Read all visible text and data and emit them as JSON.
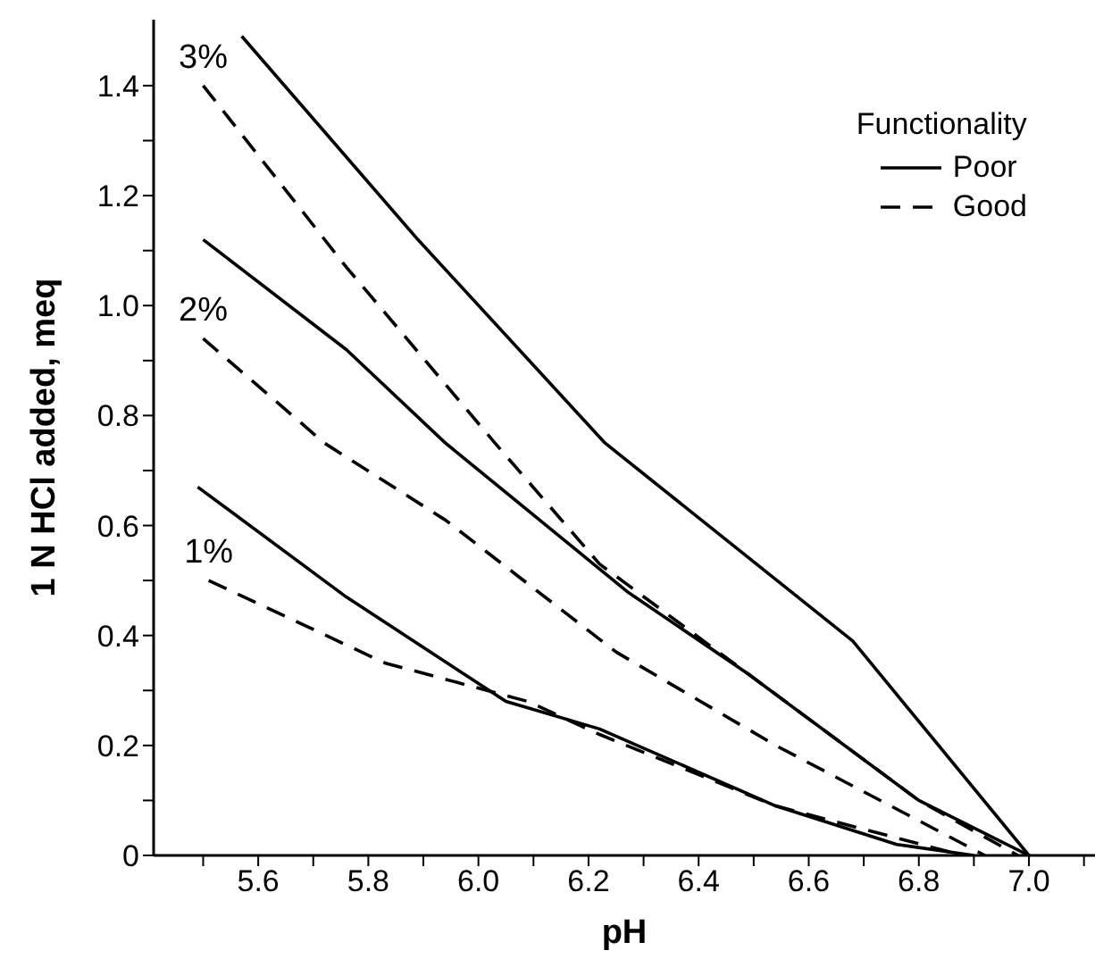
{
  "chart_data": {
    "type": "line",
    "xlabel": "pH",
    "ylabel": "1 N HCl added, meq",
    "legend_title": "Functionality",
    "legend": "top right",
    "marker": "none",
    "grid": false,
    "xlim": [
      5.41,
      7.12
    ],
    "ylim": [
      0,
      1.52
    ],
    "xticks": [
      {
        "value": 5.5,
        "label": null
      },
      {
        "value": 5.6,
        "label": "5.6"
      },
      {
        "value": 5.7,
        "label": null
      },
      {
        "value": 5.8,
        "label": "5.8"
      },
      {
        "value": 5.9,
        "label": null
      },
      {
        "value": 6.0,
        "label": "6.0"
      },
      {
        "value": 6.1,
        "label": null
      },
      {
        "value": 6.2,
        "label": "6.2"
      },
      {
        "value": 6.3,
        "label": null
      },
      {
        "value": 6.4,
        "label": "6.4"
      },
      {
        "value": 6.5,
        "label": null
      },
      {
        "value": 6.6,
        "label": "6.6"
      },
      {
        "value": 6.7,
        "label": null
      },
      {
        "value": 6.8,
        "label": "6.8"
      },
      {
        "value": 6.9,
        "label": null
      },
      {
        "value": 7.0,
        "label": "7.0"
      },
      {
        "value": 7.1,
        "label": null
      }
    ],
    "yticks": [
      {
        "value": 0,
        "label": "0"
      },
      {
        "value": 0.1,
        "label": null
      },
      {
        "value": 0.2,
        "label": "0.2"
      },
      {
        "value": 0.3,
        "label": null
      },
      {
        "value": 0.4,
        "label": "0.4"
      },
      {
        "value": 0.5,
        "label": null
      },
      {
        "value": 0.6,
        "label": "0.6"
      },
      {
        "value": 0.7,
        "label": null
      },
      {
        "value": 0.8,
        "label": "0.8"
      },
      {
        "value": 0.9,
        "label": null
      },
      {
        "value": 1.0,
        "label": "1.0"
      },
      {
        "value": 1.1,
        "label": null
      },
      {
        "value": 1.2,
        "label": "1.2"
      },
      {
        "value": 1.3,
        "label": null
      },
      {
        "value": 1.4,
        "label": "1.4"
      }
    ],
    "annotations": [
      "3%",
      "2%",
      "1%"
    ],
    "series": [
      {
        "name": "Poor",
        "color": "#000000",
        "line_style": "solid",
        "x": [
          5.57,
          5.89,
          6.23,
          6.68,
          7.0
        ],
        "values": [
          1.49,
          1.12,
          0.75,
          0.39,
          0
        ]
      },
      {
        "name": "Good",
        "color": "#000000",
        "line_style": "dashed",
        "x": [
          5.5,
          5.76,
          6.03,
          6.22,
          6.49,
          6.8,
          6.98
        ],
        "values": [
          1.4,
          1.07,
          0.75,
          0.53,
          0.33,
          0.1,
          0
        ]
      },
      {
        "color": "#000000",
        "line_style": "solid",
        "x": [
          5.5,
          5.76,
          5.94,
          6.27,
          6.49,
          6.8,
          7.0
        ],
        "values": [
          1.12,
          0.92,
          0.75,
          0.48,
          0.33,
          0.1,
          0
        ]
      },
      {
        "color": "#000000",
        "line_style": "dashed",
        "x": [
          5.5,
          5.72,
          5.94,
          6.25,
          6.54,
          6.92
        ],
        "values": [
          0.94,
          0.75,
          0.61,
          0.37,
          0.2,
          0
        ]
      },
      {
        "color": "#000000",
        "line_style": "solid",
        "x": [
          5.49,
          5.76,
          6.05,
          6.22,
          6.54,
          6.76,
          6.9
        ],
        "values": [
          0.67,
          0.47,
          0.28,
          0.23,
          0.09,
          0.02,
          0
        ]
      },
      {
        "color": "#000000",
        "line_style": "dashed",
        "x": [
          5.51,
          5.83,
          6.09,
          6.22,
          6.54,
          6.88
        ],
        "values": [
          0.5,
          0.35,
          0.28,
          0.22,
          0.09,
          0
        ]
      }
    ]
  }
}
